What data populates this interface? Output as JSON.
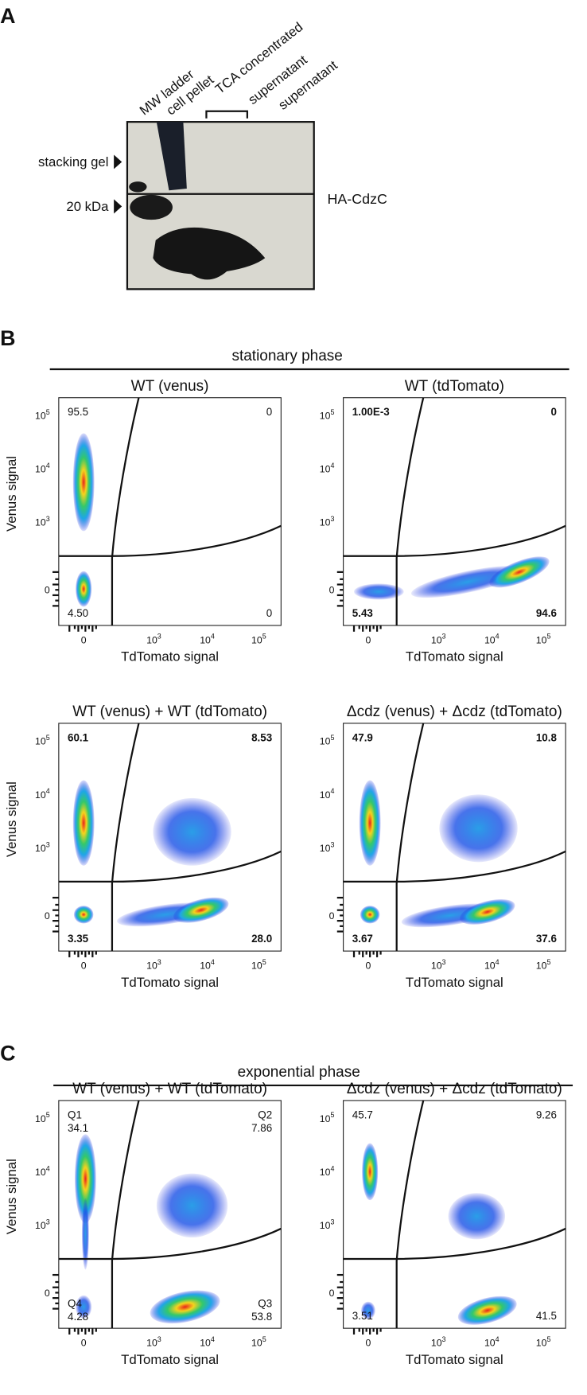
{
  "panel_a": {
    "label": "A",
    "lanes": [
      "MW ladder",
      "cell pellet",
      "TCA concentrated",
      "supernatant",
      "supernatant"
    ],
    "markers": [
      "stacking gel",
      "20 kDa"
    ],
    "protein": "HA-CdzC"
  },
  "axis_ticks": {
    "y": [
      {
        "base": "10",
        "exponent": "5"
      },
      {
        "base": "10",
        "exponent": "4"
      },
      {
        "base": "10",
        "exponent": "3"
      },
      "0"
    ],
    "x": [
      "0",
      {
        "base": "10",
        "exponent": "3"
      },
      {
        "base": "10",
        "exponent": "4"
      },
      {
        "base": "10",
        "exponent": "5"
      }
    ]
  },
  "panel_b": {
    "label": "B",
    "heading": "stationary phase",
    "plots": [
      {
        "title": "WT (venus)",
        "y_label": "Venus signal",
        "x_label": "TdTomato signal",
        "quadrants": [
          {
            "value": "95.5"
          },
          {
            "value": "0"
          },
          {
            "value": "4.50"
          },
          {
            "value": "0"
          }
        ]
      },
      {
        "title": "WT (tdTomato)",
        "x_label": "TdTomato signal",
        "quadrants": [
          {
            "value": "1.00E-3"
          },
          {
            "value": "0"
          },
          {
            "value": "5.43"
          },
          {
            "value": "94.6"
          }
        ]
      },
      {
        "title": "WT (venus)  +  WT (tdTomato)",
        "y_label": "Venus signal",
        "x_label": "TdTomato signal",
        "quadrants": [
          {
            "value": "60.1"
          },
          {
            "value": "8.53"
          },
          {
            "value": "3.35"
          },
          {
            "value": "28.0"
          }
        ]
      },
      {
        "title": "Δcdz (venus)  +  Δcdz (tdTomato)",
        "x_label": "TdTomato signal",
        "quadrants": [
          {
            "value": "47.9"
          },
          {
            "value": "10.8"
          },
          {
            "value": "3.67"
          },
          {
            "value": "37.6"
          }
        ]
      }
    ]
  },
  "panel_c": {
    "label": "C",
    "heading": "exponential phase",
    "plots": [
      {
        "title": "WT (venus)  +  WT (tdTomato)",
        "y_label": "Venus signal",
        "x_label": "TdTomato signal",
        "quadrants": [
          {
            "name": "Q1",
            "value": "34.1"
          },
          {
            "name": "Q2",
            "value": "7.86"
          },
          {
            "name": "Q4",
            "value": "4.28"
          },
          {
            "name": "Q3",
            "value": "53.8"
          }
        ]
      },
      {
        "title": "Δcdz (venus)  +  Δcdz (tdTomato)",
        "x_label": "TdTomato signal",
        "quadrants": [
          {
            "value": "45.7"
          },
          {
            "value": "9.26"
          },
          {
            "value": "3.51"
          },
          {
            "value": "41.5"
          }
        ]
      }
    ]
  }
}
